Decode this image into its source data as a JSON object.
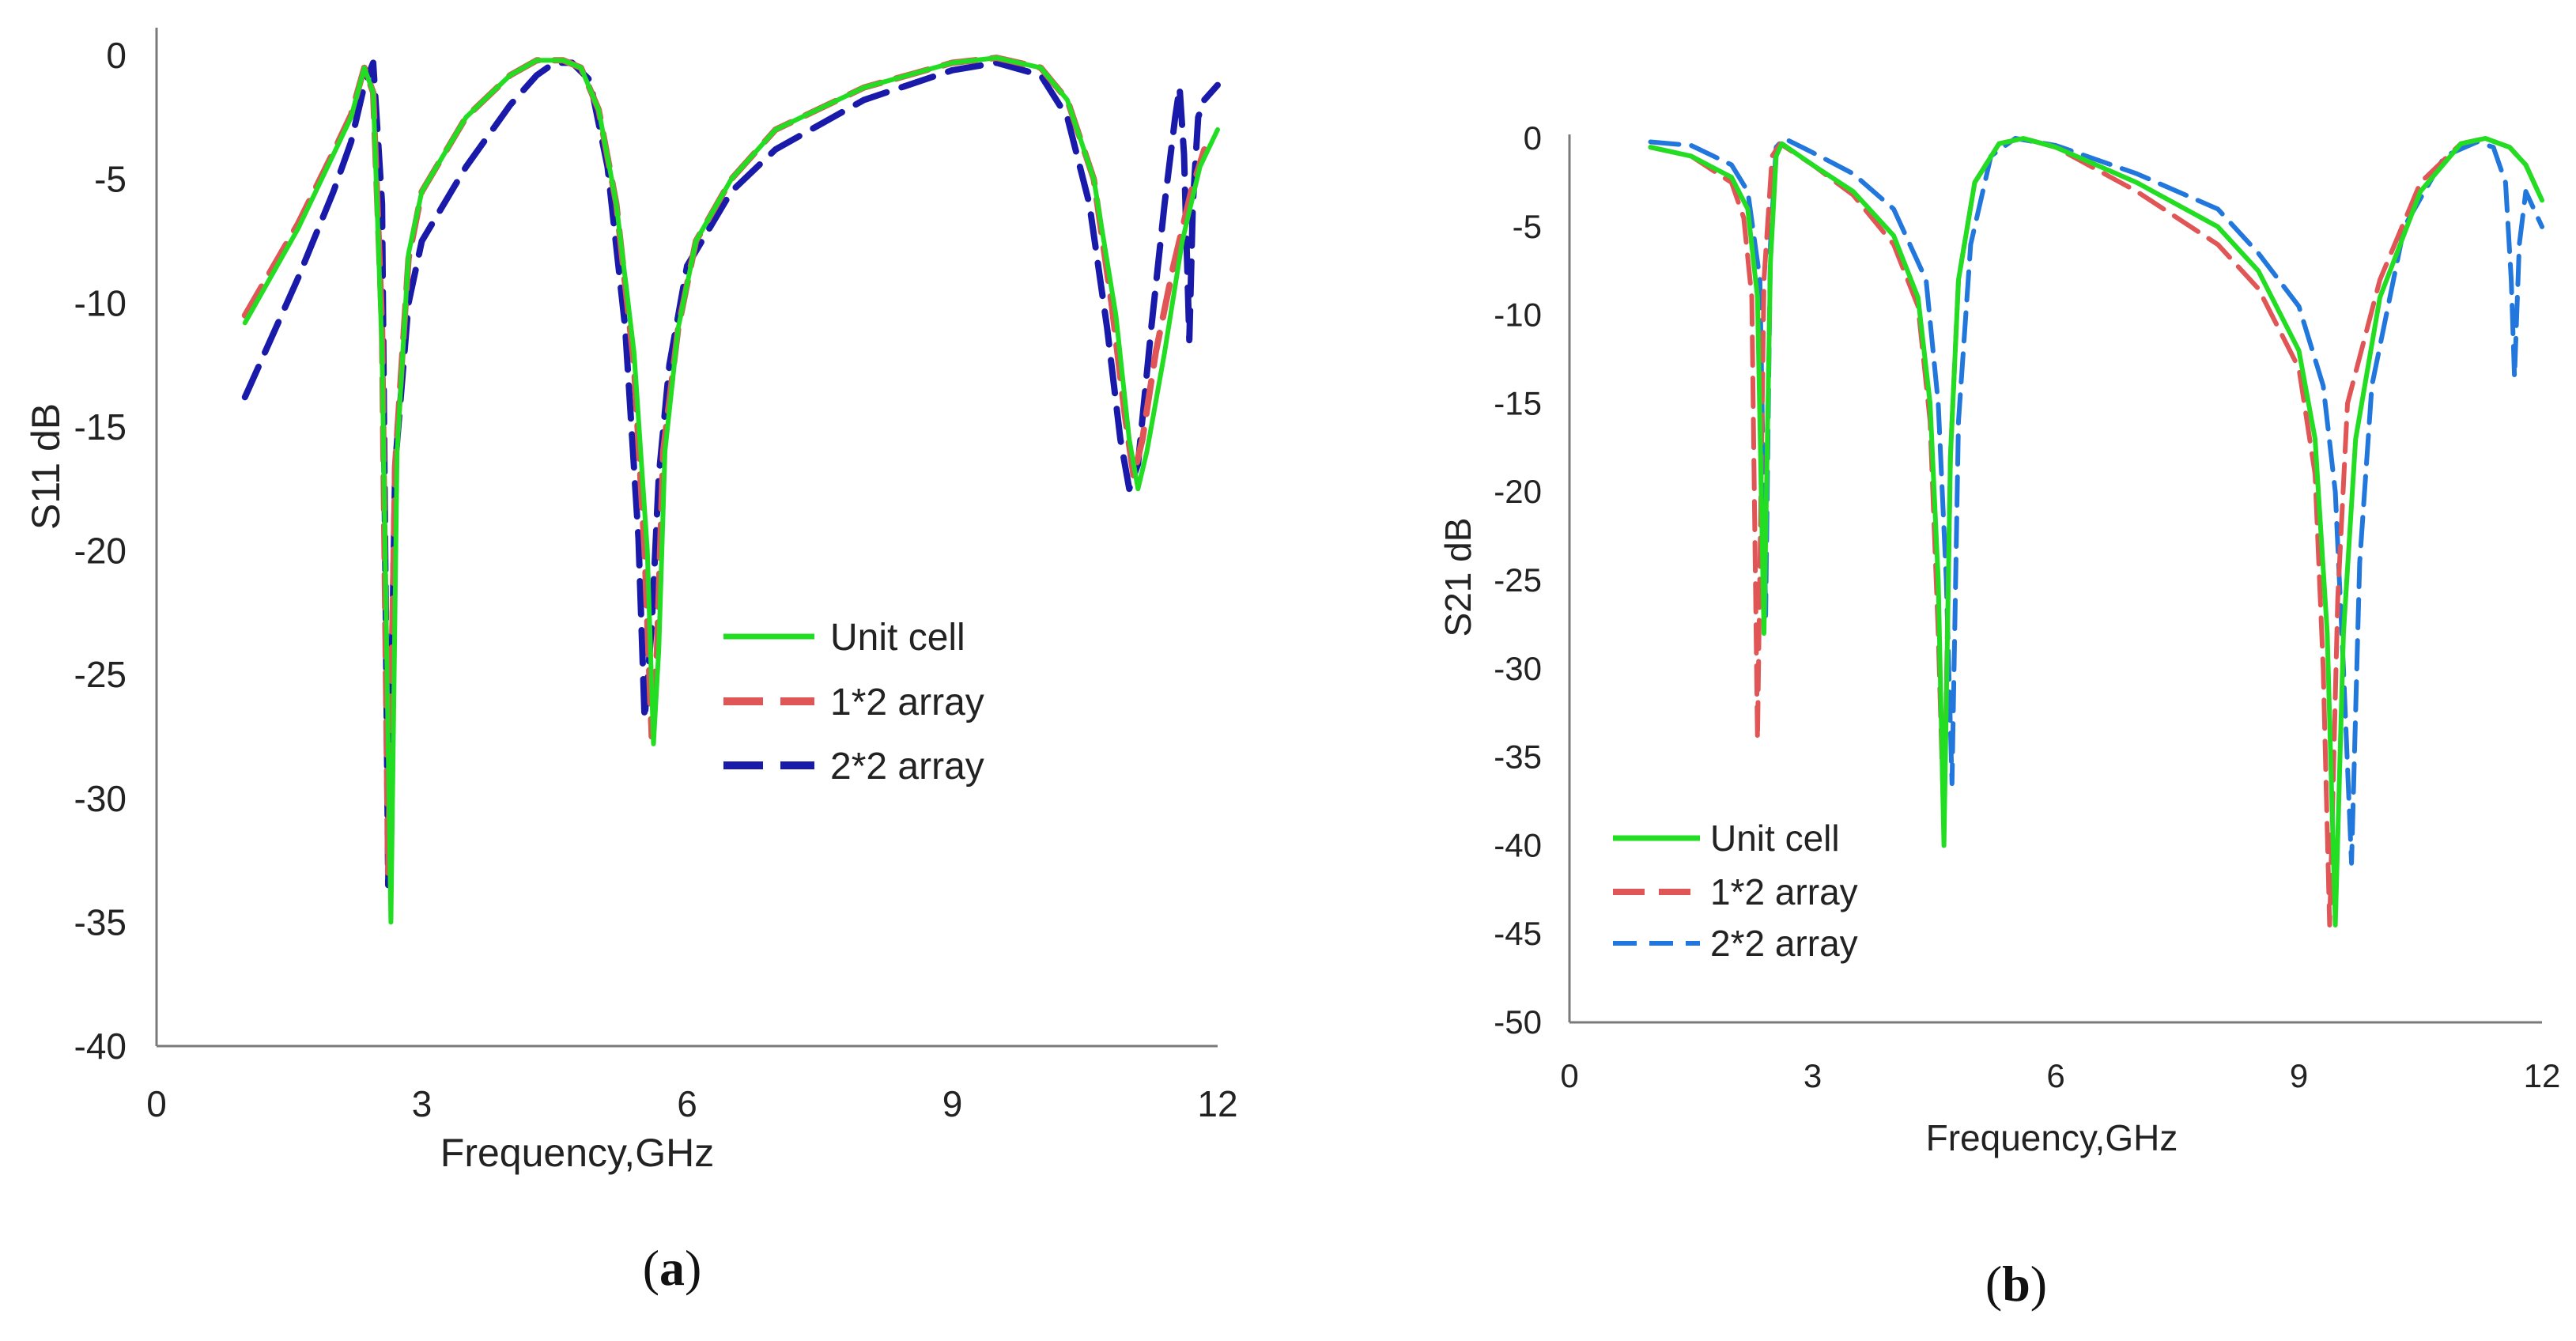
{
  "figure_captions": [
    {
      "open": "(",
      "letter": "a",
      "close": ")"
    },
    {
      "open": "(",
      "letter": "b",
      "close": ")"
    }
  ],
  "chart_data": [
    {
      "id": "a",
      "type": "line",
      "title": "",
      "xlabel": "Frequency,GHz",
      "ylabel": "S11 dB",
      "xlim": [
        0,
        12
      ],
      "ylim": [
        -40,
        0
      ],
      "xticks": [
        0,
        3,
        6,
        9,
        12
      ],
      "yticks": [
        0,
        -5,
        -10,
        -15,
        -20,
        -25,
        -30,
        -35,
        -40
      ],
      "xtick_labels": [
        "0",
        "3",
        "6",
        "9",
        "12"
      ],
      "ytick_labels": [
        "0",
        "-5",
        "-10",
        "-15",
        "-20",
        "-25",
        "-30",
        "-35",
        "-40"
      ],
      "grid": false,
      "legend": {
        "position": "center-right",
        "entries": [
          "Unit cell",
          "1*2 array",
          "2*2 array"
        ]
      },
      "series": [
        {
          "name": "Unit cell",
          "color": "#22dd22",
          "dash": "solid",
          "x": [
            1.0,
            1.6,
            2.0,
            2.2,
            2.35,
            2.45,
            2.55,
            2.65,
            2.72,
            2.85,
            3.0,
            3.5,
            4.0,
            4.3,
            4.6,
            4.8,
            5.0,
            5.2,
            5.4,
            5.55,
            5.62,
            5.68,
            5.75,
            5.9,
            6.1,
            6.5,
            7.0,
            8.0,
            9.0,
            9.5,
            10.0,
            10.3,
            10.6,
            10.85,
            11.0,
            11.1,
            11.2,
            11.4,
            11.6,
            11.8,
            12.0
          ],
          "y": [
            -10.8,
            -7.0,
            -4.0,
            -2.5,
            -0.5,
            -1.5,
            -12.0,
            -35.0,
            -16.0,
            -8.0,
            -5.5,
            -2.5,
            -0.8,
            -0.2,
            -0.2,
            -0.5,
            -2.2,
            -6.0,
            -12.0,
            -20.0,
            -27.8,
            -24.0,
            -16.0,
            -11.0,
            -7.5,
            -5.0,
            -3.0,
            -1.3,
            -0.3,
            -0.1,
            -0.5,
            -1.8,
            -5.0,
            -10.5,
            -15.5,
            -17.5,
            -16.0,
            -12.0,
            -7.5,
            -4.5,
            -3.0
          ]
        },
        {
          "name": "1*2 array",
          "color": "#e05555",
          "dash": "dashed",
          "x": [
            1.0,
            1.6,
            2.0,
            2.2,
            2.35,
            2.45,
            2.55,
            2.62,
            2.7,
            2.85,
            3.0,
            3.5,
            4.0,
            4.3,
            4.6,
            4.8,
            5.0,
            5.2,
            5.4,
            5.52,
            5.6,
            5.66,
            5.73,
            5.9,
            6.1,
            6.5,
            7.0,
            8.0,
            9.0,
            9.5,
            10.0,
            10.3,
            10.6,
            10.8,
            10.95,
            11.05,
            11.15,
            11.3,
            11.5,
            11.7,
            11.85
          ],
          "y": [
            -10.5,
            -6.8,
            -3.9,
            -2.4,
            -0.5,
            -1.5,
            -11.0,
            -33.0,
            -16.5,
            -8.2,
            -5.5,
            -2.5,
            -0.8,
            -0.2,
            -0.2,
            -0.5,
            -2.2,
            -6.0,
            -12.5,
            -20.0,
            -27.5,
            -24.0,
            -16.0,
            -11.0,
            -7.5,
            -5.0,
            -3.0,
            -1.3,
            -0.3,
            -0.1,
            -0.5,
            -1.8,
            -5.0,
            -10.0,
            -14.5,
            -17.0,
            -15.5,
            -12.0,
            -8.5,
            -5.5,
            -3.8
          ]
        },
        {
          "name": "2*2 array",
          "color": "#1a1aaa",
          "dash": "dashed",
          "x": [
            1.0,
            1.6,
            2.0,
            2.2,
            2.35,
            2.45,
            2.55,
            2.62,
            2.7,
            2.85,
            3.0,
            3.5,
            4.0,
            4.3,
            4.5,
            4.7,
            4.9,
            5.1,
            5.3,
            5.45,
            5.52,
            5.6,
            5.68,
            5.8,
            6.0,
            6.5,
            7.0,
            8.0,
            9.0,
            9.5,
            10.0,
            10.3,
            10.55,
            10.75,
            10.9,
            11.0,
            11.1,
            11.25,
            11.4,
            11.52,
            11.57,
            11.62,
            11.68,
            11.72,
            11.78,
            11.85,
            12.0
          ],
          "y": [
            -13.8,
            -9.0,
            -5.5,
            -3.5,
            -1.2,
            -0.3,
            -6.0,
            -33.5,
            -16.5,
            -10.0,
            -7.5,
            -4.5,
            -2.0,
            -0.8,
            -0.3,
            -0.3,
            -1.0,
            -4.5,
            -11.0,
            -19.5,
            -26.8,
            -23.0,
            -17.0,
            -12.5,
            -8.5,
            -5.5,
            -3.8,
            -1.8,
            -0.6,
            -0.3,
            -0.8,
            -2.5,
            -6.0,
            -11.0,
            -15.5,
            -17.5,
            -16.5,
            -11.0,
            -6.0,
            -2.5,
            -1.3,
            -4.0,
            -11.5,
            -6.0,
            -2.5,
            -1.8,
            -1.2
          ]
        }
      ]
    },
    {
      "id": "b",
      "type": "line",
      "title": "",
      "xlabel": "Frequency,GHz",
      "ylabel": "S21 dB",
      "xlim": [
        0,
        12
      ],
      "ylim": [
        -50,
        0
      ],
      "xticks": [
        0,
        3,
        6,
        9,
        12
      ],
      "yticks": [
        0,
        -5,
        -10,
        -15,
        -20,
        -25,
        -30,
        -35,
        -40,
        -45,
        -50
      ],
      "xtick_labels": [
        "0",
        "3",
        "6",
        "9",
        "12"
      ],
      "ytick_labels": [
        "0",
        "-5",
        "-10",
        "-15",
        "-20",
        "-25",
        "-30",
        "-35",
        "-40",
        "-45",
        "-50"
      ],
      "grid": false,
      "legend": {
        "position": "bottom-left",
        "entries": [
          "Unit cell",
          "1*2 array",
          "2*2 array"
        ]
      },
      "series": [
        {
          "name": "Unit cell",
          "color": "#22dd22",
          "dash": "solid",
          "x": [
            1.0,
            1.5,
            2.0,
            2.2,
            2.32,
            2.4,
            2.48,
            2.55,
            2.62,
            3.0,
            3.5,
            4.0,
            4.3,
            4.45,
            4.55,
            4.62,
            4.7,
            4.8,
            5.0,
            5.3,
            5.6,
            6.0,
            7.0,
            8.0,
            8.5,
            9.0,
            9.2,
            9.35,
            9.45,
            9.55,
            9.7,
            10.0,
            10.5,
            11.0,
            11.3,
            11.6,
            11.8,
            12.0
          ],
          "y": [
            -0.5,
            -1.0,
            -2.2,
            -4.0,
            -9.0,
            -28.0,
            -7.0,
            -1.0,
            -0.3,
            -1.5,
            -3.0,
            -5.5,
            -9.0,
            -15.0,
            -25.0,
            -40.0,
            -18.0,
            -8.0,
            -2.5,
            -0.3,
            0.0,
            -0.5,
            -2.5,
            -5.0,
            -7.5,
            -12.0,
            -17.0,
            -28.0,
            -44.5,
            -28.0,
            -17.0,
            -9.0,
            -3.0,
            -0.3,
            0.0,
            -0.5,
            -1.5,
            -3.5
          ]
        },
        {
          "name": "1*2 array",
          "color": "#e05555",
          "dash": "dashed",
          "x": [
            1.0,
            1.5,
            2.0,
            2.15,
            2.25,
            2.32,
            2.4,
            2.5,
            2.6,
            3.0,
            3.5,
            4.0,
            4.3,
            4.45,
            4.55,
            4.62,
            4.7,
            4.8,
            5.0,
            5.3,
            5.6,
            6.0,
            7.0,
            8.0,
            8.5,
            9.0,
            9.2,
            9.3,
            9.38,
            9.48,
            9.6,
            10.0,
            10.5,
            11.0,
            11.3,
            11.6,
            11.8,
            12.0
          ],
          "y": [
            -0.5,
            -1.0,
            -2.5,
            -4.5,
            -9.0,
            -34.0,
            -8.0,
            -1.0,
            -0.3,
            -1.5,
            -3.2,
            -6.0,
            -9.5,
            -16.0,
            -28.0,
            -39.0,
            -18.0,
            -8.0,
            -2.5,
            -0.3,
            0.0,
            -0.5,
            -3.0,
            -6.0,
            -8.5,
            -13.0,
            -19.0,
            -30.0,
            -44.5,
            -26.0,
            -15.0,
            -8.0,
            -2.5,
            -0.3,
            0.0,
            -0.5,
            -1.5,
            -3.5
          ]
        },
        {
          "name": "2*2 array",
          "color": "#2277dd",
          "dash": "dashed",
          "x": [
            1.0,
            1.5,
            2.0,
            2.2,
            2.35,
            2.42,
            2.48,
            2.55,
            2.65,
            3.0,
            3.5,
            4.0,
            4.4,
            4.55,
            4.65,
            4.72,
            4.8,
            4.95,
            5.2,
            5.5,
            6.0,
            7.0,
            8.0,
            8.5,
            9.0,
            9.3,
            9.45,
            9.55,
            9.65,
            9.75,
            9.9,
            10.3,
            10.8,
            11.2,
            11.4,
            11.55,
            11.62,
            11.66,
            11.72,
            11.8,
            12.0
          ],
          "y": [
            -0.2,
            -0.4,
            -1.5,
            -3.0,
            -8.0,
            -27.0,
            -6.0,
            -0.5,
            0.0,
            -0.8,
            -2.0,
            -4.0,
            -8.0,
            -15.0,
            -25.0,
            -36.5,
            -16.0,
            -6.0,
            -1.0,
            0.0,
            -0.4,
            -2.0,
            -4.0,
            -6.5,
            -9.5,
            -14.0,
            -20.0,
            -30.0,
            -41.0,
            -24.0,
            -14.0,
            -5.0,
            -1.0,
            -0.2,
            -0.5,
            -2.5,
            -8.0,
            -13.5,
            -6.0,
            -3.0,
            -5.0
          ]
        }
      ]
    }
  ]
}
